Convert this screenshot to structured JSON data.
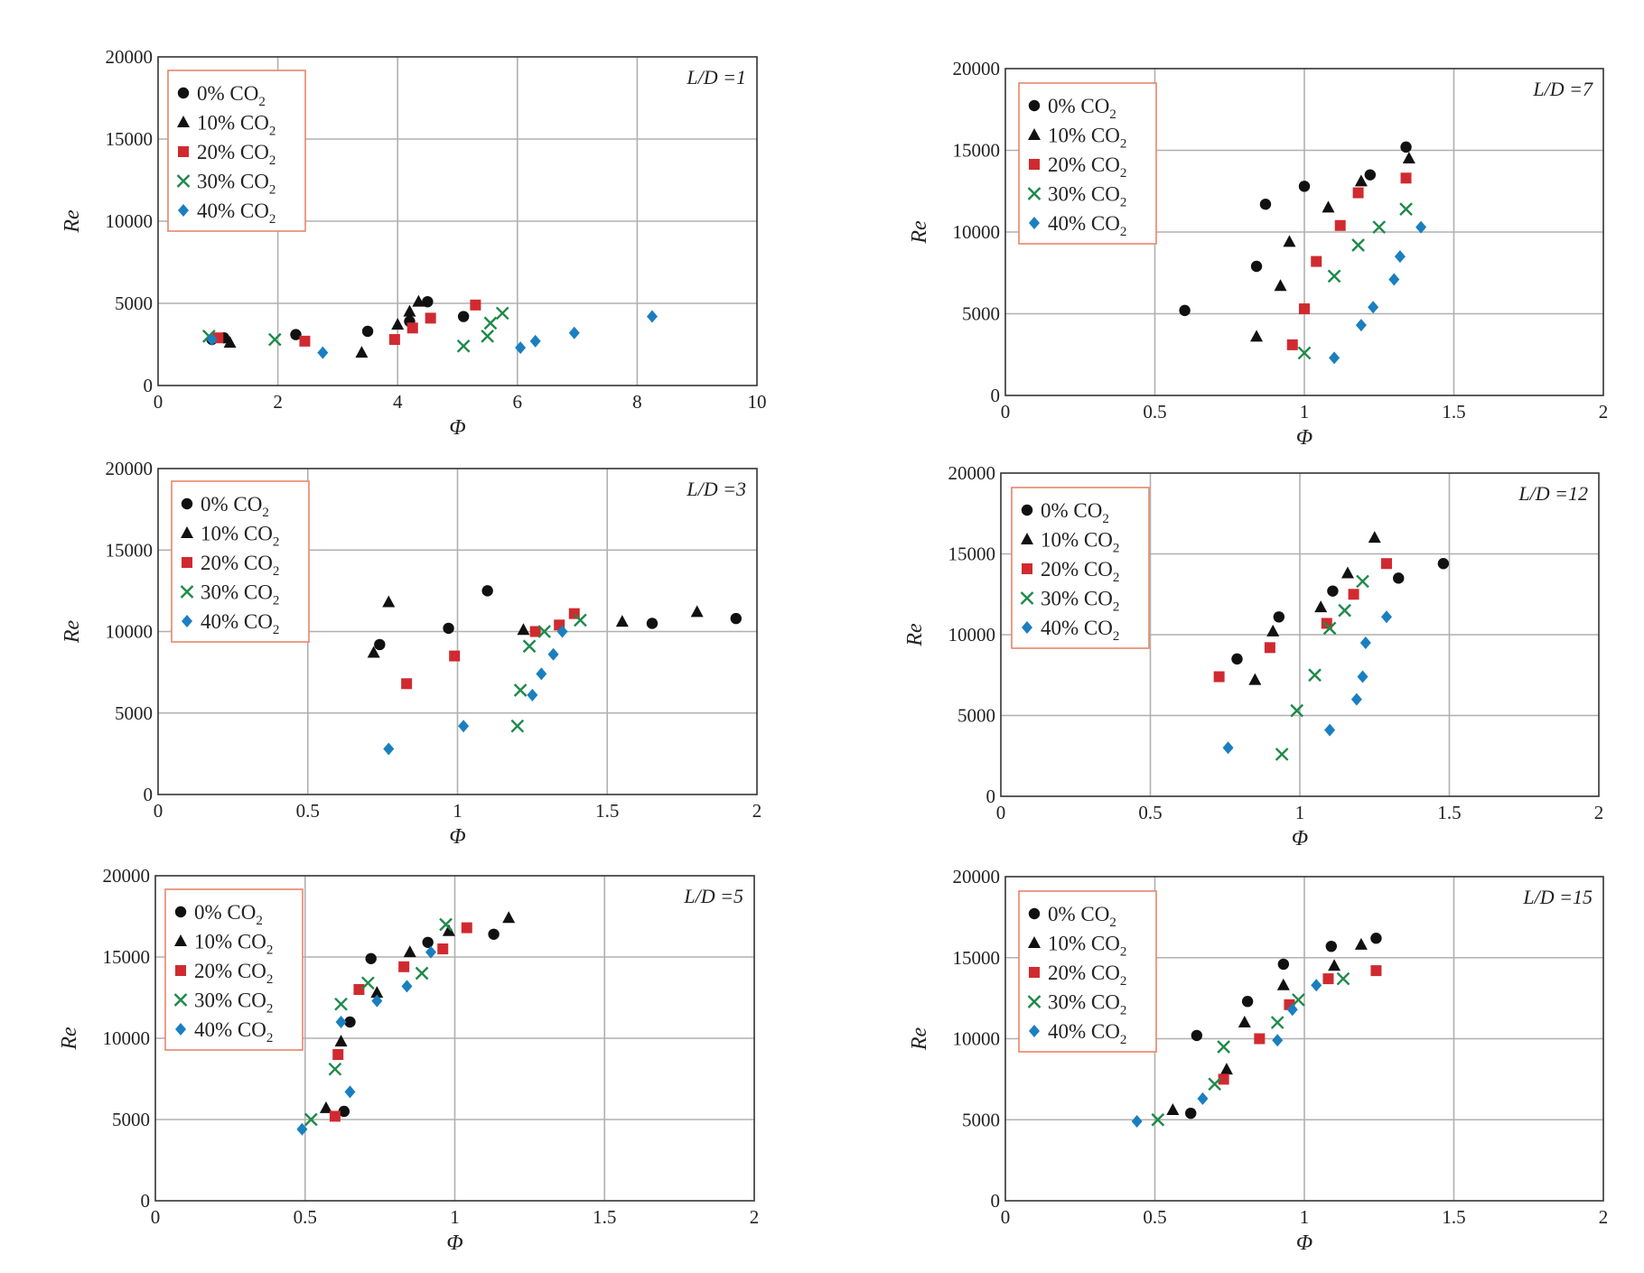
{
  "colors": {
    "0% CO2": "#111111",
    "10% CO2": "#111111",
    "20% CO2": "#d02a30",
    "30% CO2": "#1e8a4a",
    "40% CO2": "#1a7fc0",
    "grid": "#b0b0b0",
    "legend_border": "#e8866a"
  },
  "chart_data": [
    {
      "type": "scatter",
      "panel": "L/D =1",
      "title": "L/D =1",
      "xlabel": "Φ",
      "ylabel": "Re",
      "xlim": [
        0,
        10
      ],
      "ylim": [
        0,
        20000
      ],
      "xticks": [
        "0",
        "2",
        "4",
        "6",
        "8",
        "10"
      ],
      "yticks": [
        "0",
        "5000",
        "10000",
        "15000",
        "20000"
      ],
      "series": [
        {
          "name": "0% CO2",
          "marker": "circle",
          "x": [
            0.9,
            1.1,
            2.3,
            3.5,
            4.2,
            4.5,
            5.1
          ],
          "y": [
            2800,
            2900,
            3100,
            3300,
            3900,
            5100,
            4200
          ]
        },
        {
          "name": "10% CO2",
          "marker": "triangle",
          "x": [
            1.2,
            3.4,
            4.0,
            4.2,
            4.35
          ],
          "y": [
            2600,
            2000,
            3700,
            4500,
            5100
          ]
        },
        {
          "name": "20% CO2",
          "marker": "square",
          "x": [
            1.0,
            2.45,
            3.95,
            4.25,
            4.55,
            5.3
          ],
          "y": [
            2900,
            2700,
            2800,
            3500,
            4100,
            4900
          ]
        },
        {
          "name": "30% CO2",
          "marker": "x",
          "x": [
            0.85,
            1.95,
            5.1,
            5.5,
            5.55,
            5.75
          ],
          "y": [
            3000,
            2800,
            2400,
            3000,
            3800,
            4400
          ]
        },
        {
          "name": "40% CO2",
          "marker": "diamond",
          "x": [
            0.9,
            2.75,
            6.05,
            6.3,
            6.95,
            8.25
          ],
          "y": [
            2800,
            2000,
            2300,
            2700,
            3200,
            4200
          ]
        }
      ]
    },
    {
      "type": "scatter",
      "panel": "L/D =7",
      "title": "L/D =7",
      "xlabel": "Φ",
      "ylabel": "Re",
      "xlim": [
        0,
        2
      ],
      "ylim": [
        0,
        20000
      ],
      "xticks": [
        "0",
        "0.5",
        "1",
        "1.5",
        "2"
      ],
      "yticks": [
        "0",
        "5000",
        "10000",
        "15000",
        "20000"
      ],
      "series": [
        {
          "name": "0% CO2",
          "marker": "circle",
          "x": [
            0.6,
            0.84,
            0.87,
            1.0,
            1.22,
            1.34
          ],
          "y": [
            5200,
            7900,
            11700,
            12800,
            13500,
            15200
          ]
        },
        {
          "name": "10% CO2",
          "marker": "triangle",
          "x": [
            0.84,
            0.92,
            0.95,
            1.08,
            1.19,
            1.35
          ],
          "y": [
            3600,
            6700,
            9400,
            11500,
            13100,
            14500
          ]
        },
        {
          "name": "20% CO2",
          "marker": "square",
          "x": [
            0.96,
            1.0,
            1.04,
            1.12,
            1.18,
            1.34
          ],
          "y": [
            3100,
            5300,
            8200,
            10400,
            12400,
            13300
          ]
        },
        {
          "name": "30% CO2",
          "marker": "x",
          "x": [
            1.0,
            1.1,
            1.18,
            1.25,
            1.34
          ],
          "y": [
            2600,
            7300,
            9200,
            10300,
            11400
          ]
        },
        {
          "name": "40% CO2",
          "marker": "diamond",
          "x": [
            1.1,
            1.19,
            1.23,
            1.3,
            1.32,
            1.39
          ],
          "y": [
            2300,
            4300,
            5400,
            7100,
            8500,
            10300
          ]
        }
      ]
    },
    {
      "type": "scatter",
      "panel": "L/D =3",
      "title": "L/D =3",
      "xlabel": "Φ",
      "ylabel": "Re",
      "xlim": [
        0,
        2
      ],
      "ylim": [
        0,
        20000
      ],
      "xticks": [
        "0",
        "0.5",
        "1",
        "1.5",
        "2"
      ],
      "yticks": [
        "0",
        "5000",
        "10000",
        "15000",
        "20000"
      ],
      "series": [
        {
          "name": "0% CO2",
          "marker": "circle",
          "x": [
            0.74,
            0.97,
            1.1,
            1.65,
            1.93
          ],
          "y": [
            9200,
            10200,
            12500,
            10500,
            10800
          ]
        },
        {
          "name": "10% CO2",
          "marker": "triangle",
          "x": [
            0.72,
            0.77,
            1.22,
            1.55,
            1.8
          ],
          "y": [
            8700,
            11800,
            10100,
            10600,
            11200
          ]
        },
        {
          "name": "20% CO2",
          "marker": "square",
          "x": [
            0.83,
            0.99,
            1.26,
            1.34,
            1.39
          ],
          "y": [
            6800,
            8500,
            10000,
            10400,
            11100
          ]
        },
        {
          "name": "30% CO2",
          "marker": "x",
          "x": [
            1.2,
            1.21,
            1.24,
            1.29,
            1.41
          ],
          "y": [
            4200,
            6400,
            9100,
            10000,
            10700
          ]
        },
        {
          "name": "40% CO2",
          "marker": "diamond",
          "x": [
            0.77,
            1.02,
            1.25,
            1.28,
            1.32,
            1.35
          ],
          "y": [
            2800,
            4200,
            6100,
            7400,
            8600,
            10000
          ]
        }
      ]
    },
    {
      "type": "scatter",
      "panel": "L/D =12",
      "title": "L/D =12",
      "xlabel": "Φ",
      "ylabel": "Re",
      "xlim": [
        0,
        2
      ],
      "ylim": [
        0,
        20000
      ],
      "xticks": [
        "0",
        "0.5",
        "1",
        "1.5",
        "2"
      ],
      "yticks": [
        "0",
        "5000",
        "10000",
        "15000",
        "20000"
      ],
      "series": [
        {
          "name": "0% CO2",
          "marker": "circle",
          "x": [
            0.79,
            0.93,
            1.11,
            1.33,
            1.48
          ],
          "y": [
            8500,
            11100,
            12700,
            13500,
            14400
          ]
        },
        {
          "name": "10% CO2",
          "marker": "triangle",
          "x": [
            0.85,
            0.91,
            1.07,
            1.16,
            1.25
          ],
          "y": [
            7200,
            10200,
            11700,
            13800,
            16000
          ]
        },
        {
          "name": "20% CO2",
          "marker": "square",
          "x": [
            0.73,
            0.9,
            1.09,
            1.18,
            1.29
          ],
          "y": [
            7400,
            9200,
            10700,
            12500,
            14400
          ]
        },
        {
          "name": "30% CO2",
          "marker": "x",
          "x": [
            0.94,
            0.99,
            1.05,
            1.1,
            1.15,
            1.21
          ],
          "y": [
            2600,
            5300,
            7500,
            10400,
            11500,
            13300
          ]
        },
        {
          "name": "40% CO2",
          "marker": "diamond",
          "x": [
            0.76,
            1.1,
            1.19,
            1.21,
            1.22,
            1.29
          ],
          "y": [
            3000,
            4100,
            6000,
            7400,
            9500,
            11100
          ]
        }
      ]
    },
    {
      "type": "scatter",
      "panel": "L/D =5",
      "title": "L/D =5",
      "xlabel": "Φ",
      "ylabel": "Re",
      "xlim": [
        0,
        2
      ],
      "ylim": [
        0,
        20000
      ],
      "xticks": [
        "0",
        "0.5",
        "1",
        "1.5",
        "2"
      ],
      "yticks": [
        "0",
        "5000",
        "10000",
        "15000",
        "20000"
      ],
      "series": [
        {
          "name": "0% CO2",
          "marker": "circle",
          "x": [
            0.63,
            0.65,
            0.72,
            0.91,
            1.13
          ],
          "y": [
            5500,
            11000,
            14900,
            15900,
            16400
          ]
        },
        {
          "name": "10% CO2",
          "marker": "triangle",
          "x": [
            0.57,
            0.62,
            0.74,
            0.85,
            0.98,
            1.18
          ],
          "y": [
            5700,
            9800,
            12800,
            15300,
            16600,
            17400
          ]
        },
        {
          "name": "20% CO2",
          "marker": "square",
          "x": [
            0.6,
            0.61,
            0.68,
            0.83,
            0.96,
            1.04
          ],
          "y": [
            5200,
            9000,
            13000,
            14400,
            15500,
            16800
          ]
        },
        {
          "name": "30% CO2",
          "marker": "x",
          "x": [
            0.52,
            0.6,
            0.62,
            0.71,
            0.89,
            0.97
          ],
          "y": [
            5000,
            8100,
            12100,
            13400,
            14000,
            17000
          ]
        },
        {
          "name": "40% CO2",
          "marker": "diamond",
          "x": [
            0.49,
            0.62,
            0.65,
            0.74,
            0.84,
            0.92
          ],
          "y": [
            4400,
            11000,
            6700,
            12300,
            13200,
            15300
          ]
        }
      ]
    },
    {
      "type": "scatter",
      "panel": "L/D =15",
      "title": "L/D =15",
      "xlabel": "Φ",
      "ylabel": "Re",
      "xlim": [
        0,
        2
      ],
      "ylim": [
        0,
        20000
      ],
      "xticks": [
        "0",
        "0.5",
        "1",
        "1.5",
        "2"
      ],
      "yticks": [
        "0",
        "5000",
        "10000",
        "15000",
        "20000"
      ],
      "series": [
        {
          "name": "0% CO2",
          "marker": "circle",
          "x": [
            0.62,
            0.64,
            0.81,
            0.93,
            1.09,
            1.24
          ],
          "y": [
            5400,
            10200,
            12300,
            14600,
            15700,
            16200
          ]
        },
        {
          "name": "10% CO2",
          "marker": "triangle",
          "x": [
            0.56,
            0.74,
            0.8,
            0.93,
            1.1,
            1.19
          ],
          "y": [
            5600,
            8100,
            11000,
            13300,
            14500,
            15800
          ]
        },
        {
          "name": "20% CO2",
          "marker": "square",
          "x": [
            0.73,
            0.85,
            0.95,
            1.08,
            1.24
          ],
          "y": [
            7500,
            10000,
            12100,
            13700,
            14200
          ]
        },
        {
          "name": "30% CO2",
          "marker": "x",
          "x": [
            0.51,
            0.7,
            0.73,
            0.91,
            0.98,
            1.13
          ],
          "y": [
            5000,
            7200,
            9500,
            11000,
            12400,
            13700
          ]
        },
        {
          "name": "40% CO2",
          "marker": "diamond",
          "x": [
            0.44,
            0.66,
            0.91,
            0.96,
            1.04
          ],
          "y": [
            4900,
            6300,
            9900,
            11800,
            13300
          ]
        }
      ]
    }
  ]
}
